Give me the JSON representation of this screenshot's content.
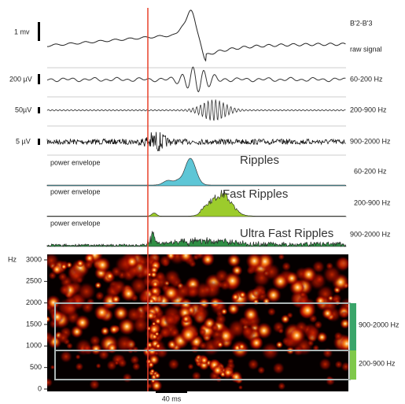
{
  "figure": {
    "channel": "B'2-B'3",
    "traces": [
      {
        "scale": "1 mv",
        "label": "raw signal"
      },
      {
        "scale": "200 µV",
        "label": "60-200 Hz"
      },
      {
        "scale": "50µV",
        "label": "200-900 Hz"
      },
      {
        "scale": "5 µV",
        "label": "900-2000 Hz"
      }
    ],
    "envelopes": [
      {
        "caption": "power envelope",
        "title": "Ripples",
        "label": "60-200 Hz"
      },
      {
        "caption": "power envelope",
        "title": "Fast Ripples",
        "label": "200-900 Hz"
      },
      {
        "caption": "power envelope",
        "title": "Ultra Fast Ripples",
        "label": "900-2000 Hz"
      }
    ],
    "spectrogram": {
      "y_label": "Hz",
      "ylim": [
        0,
        3000
      ],
      "yticks": [
        0,
        500,
        1000,
        1500,
        2000,
        2500,
        3000
      ],
      "bands": [
        "900-2000 Hz",
        "200-900 Hz"
      ]
    },
    "time_scale": "40 ms"
  }
}
